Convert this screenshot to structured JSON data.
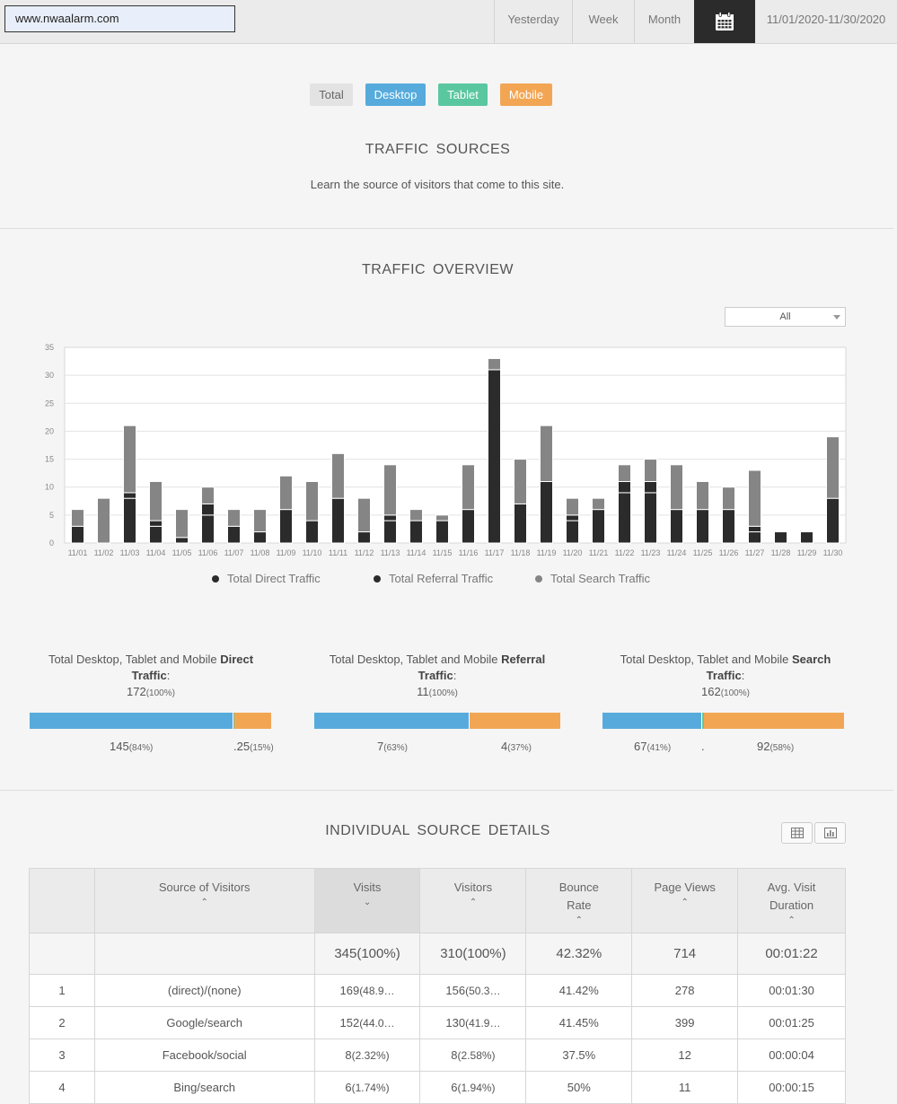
{
  "topbar": {
    "site": "www.nwaalarm.com",
    "range_buttons": [
      "Yesterday",
      "Week",
      "Month"
    ],
    "date_range": "11/01/2020-11/30/2020"
  },
  "tabs": {
    "total": "Total",
    "desktop": "Desktop",
    "tablet": "Tablet",
    "mobile": "Mobile"
  },
  "traffic_sources": {
    "title": "TRAFFIC  SOURCES",
    "subtitle": "Learn the source of visitors that come to this site."
  },
  "overview": {
    "title": "TRAFFIC  OVERVIEW",
    "filter_value": "All"
  },
  "chart_data": {
    "type": "bar",
    "stacked": true,
    "categories": [
      "11/01",
      "11/02",
      "11/03",
      "11/04",
      "11/05",
      "11/06",
      "11/07",
      "11/08",
      "11/09",
      "11/10",
      "11/11",
      "11/12",
      "11/13",
      "11/14",
      "11/15",
      "11/16",
      "11/17",
      "11/18",
      "11/19",
      "11/20",
      "11/21",
      "11/22",
      "11/23",
      "11/24",
      "11/25",
      "11/26",
      "11/27",
      "11/28",
      "11/29",
      "11/30"
    ],
    "series": [
      {
        "name": "Total Direct Traffic",
        "color": "#2b2b2b",
        "values": [
          3,
          0,
          8,
          3,
          1,
          5,
          3,
          2,
          6,
          4,
          8,
          2,
          4,
          4,
          4,
          6,
          31,
          7,
          11,
          4,
          6,
          9,
          9,
          6,
          6,
          6,
          2,
          2,
          2,
          8
        ]
      },
      {
        "name": "Total Referral Traffic",
        "color": "#2b2b2b",
        "values": [
          0,
          0,
          1,
          1,
          0,
          2,
          0,
          0,
          0,
          0,
          0,
          0,
          1,
          0,
          0,
          0,
          0,
          0,
          0,
          1,
          0,
          2,
          2,
          0,
          0,
          0,
          1,
          0,
          0,
          0
        ]
      },
      {
        "name": "Total Search Traffic",
        "color": "#858585",
        "values": [
          3,
          8,
          12,
          7,
          5,
          3,
          3,
          4,
          6,
          7,
          8,
          6,
          9,
          2,
          1,
          8,
          2,
          8,
          10,
          3,
          2,
          3,
          4,
          8,
          5,
          4,
          10,
          0,
          0,
          11
        ]
      }
    ],
    "ylim": [
      0,
      35
    ],
    "yticks": [
      0,
      5,
      10,
      15,
      20,
      25,
      30,
      35
    ],
    "grid": true,
    "legend": "bottom"
  },
  "summaries": [
    {
      "prefix": "Total Desktop, Tablet and Mobile ",
      "bold": "Direct",
      "line2_bold": "Traffic",
      "colon": ":",
      "total": "172",
      "total_pct": "(100%)",
      "desktop": 0.84,
      "tablet": 0.005,
      "mobile": 0.15,
      "labels": [
        {
          "val": "145",
          "pct": "(84%)"
        },
        {
          "val": ".25",
          "pct": "(15%)"
        }
      ]
    },
    {
      "prefix": "Total Desktop, Tablet and Mobile ",
      "bold": "Referral",
      "line2_bold": "Traffic",
      "colon": ":",
      "total": "11",
      "total_pct": "(100%)",
      "desktop": 0.63,
      "tablet": 0,
      "mobile": 0.37,
      "labels": [
        {
          "val": "7",
          "pct": "(63%)"
        },
        {
          "val": "4",
          "pct": "(37%)"
        }
      ]
    },
    {
      "prefix": "Total Desktop, Tablet and Mobile ",
      "bold": "Search",
      "line2_bold": "Traffic",
      "colon": ":",
      "total": "162",
      "total_pct": "(100%)",
      "desktop": 0.41,
      "tablet": 0.005,
      "mobile": 0.58,
      "labels": [
        {
          "val": "67",
          "pct": "(41%)"
        },
        {
          "val": ".",
          "pct": ""
        },
        {
          "val": "92",
          "pct": "(58%)"
        }
      ]
    }
  ],
  "details": {
    "title": "INDIVIDUAL  SOURCE  DETAILS",
    "headers": {
      "source": "Source of Visitors",
      "visits": "Visits",
      "visitors": "Visitors",
      "bounce_1": "Bounce",
      "bounce_2": "Rate",
      "pageviews": "Page Views",
      "duration_1": "Avg. Visit",
      "duration_2": "Duration"
    },
    "totals": {
      "visits": "345(100%)",
      "visitors": "310(100%)",
      "bounce": "42.32%",
      "pageviews": "714",
      "duration": "00:01:22"
    },
    "rows": [
      {
        "rank": "1",
        "source": "(direct)/(none)",
        "visits": "169",
        "visits_pct": "(48.9…",
        "visitors": "156",
        "visitors_pct": "(50.3…",
        "bounce": "41.42%",
        "pageviews": "278",
        "duration": "00:01:30"
      },
      {
        "rank": "2",
        "source": "Google/search",
        "visits": "152",
        "visits_pct": "(44.0…",
        "visitors": "130",
        "visitors_pct": "(41.9…",
        "bounce": "41.45%",
        "pageviews": "399",
        "duration": "00:01:25"
      },
      {
        "rank": "3",
        "source": "Facebook/social",
        "visits": "8",
        "visits_pct": "(2.32%)",
        "visitors": "8",
        "visitors_pct": "(2.58%)",
        "bounce": "37.5%",
        "pageviews": "12",
        "duration": "00:00:04"
      },
      {
        "rank": "4",
        "source": "Bing/search",
        "visits": "6",
        "visits_pct": "(1.74%)",
        "visitors": "6",
        "visitors_pct": "(1.94%)",
        "bounce": "50%",
        "pageviews": "11",
        "duration": "00:00:15"
      }
    ]
  }
}
